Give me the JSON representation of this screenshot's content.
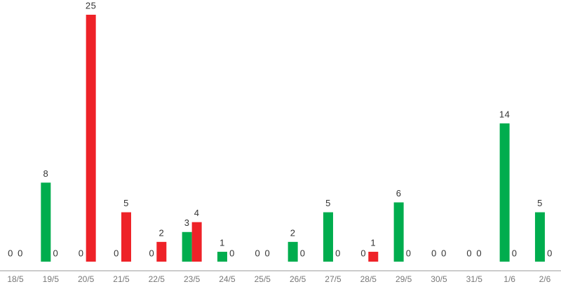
{
  "chart_data": {
    "type": "bar",
    "categories": [
      "18/5",
      "19/5",
      "20/5",
      "21/5",
      "22/5",
      "23/5",
      "24/5",
      "25/5",
      "26/5",
      "27/5",
      "28/5",
      "29/5",
      "30/5",
      "31/5",
      "1/6",
      "2/6"
    ],
    "series": [
      {
        "color": "#00ad4e",
        "values": [
          0,
          8,
          0,
          0,
          0,
          3,
          1,
          0,
          2,
          5,
          0,
          6,
          0,
          0,
          14,
          5
        ]
      },
      {
        "color": "#ee2228",
        "values": [
          0,
          0,
          25,
          5,
          2,
          4,
          0,
          0,
          0,
          0,
          1,
          0,
          0,
          0,
          0,
          0
        ]
      }
    ]
  }
}
